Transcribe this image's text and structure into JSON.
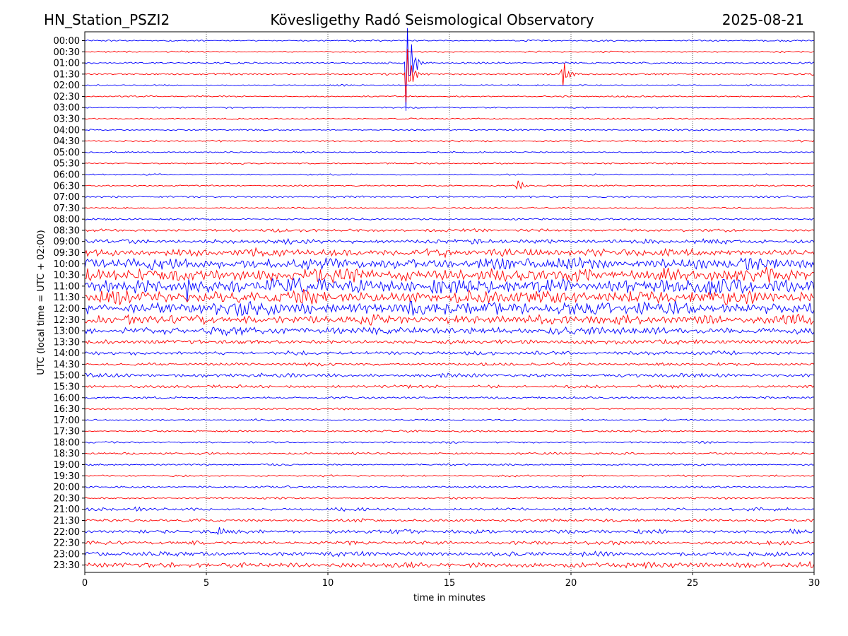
{
  "header": {
    "station": "HN_Station_PSZI2",
    "observatory": "Kövesligethy Radó Seismological Observatory",
    "date": "2025-08-21"
  },
  "colors": {
    "even_rows": "#0000ff",
    "odd_rows": "#ff0000",
    "grid": "#000000"
  },
  "chart_data": {
    "type": "line",
    "plot": "helicorder (seismogram drum)",
    "title": "Kövesligethy Radó Seismological Observatory",
    "xlabel": "time in minutes",
    "ylabel": "UTC (local time = UTC + 02:00)",
    "xlim": [
      0,
      30
    ],
    "x_ticks": [
      0,
      5,
      10,
      15,
      20,
      25,
      30
    ],
    "x_gridlines": [
      5,
      10,
      15,
      20,
      25
    ],
    "grid": "vertical dotted lines at x ticks",
    "row_labels": [
      "00:00",
      "00:30",
      "01:00",
      "01:30",
      "02:00",
      "02:30",
      "03:00",
      "03:30",
      "04:00",
      "04:30",
      "05:00",
      "05:30",
      "06:00",
      "06:30",
      "07:00",
      "07:30",
      "08:00",
      "08:30",
      "09:00",
      "09:30",
      "10:00",
      "10:30",
      "11:00",
      "11:30",
      "12:00",
      "12:30",
      "13:00",
      "13:30",
      "14:00",
      "14:30",
      "15:00",
      "15:30",
      "16:00",
      "16:30",
      "17:00",
      "17:30",
      "18:00",
      "18:30",
      "19:00",
      "19:30",
      "20:00",
      "20:30",
      "21:00",
      "21:30",
      "22:00",
      "22:30",
      "23:00",
      "23:30"
    ],
    "noise_level_relative": [
      0.04,
      0.04,
      0.05,
      0.05,
      0.04,
      0.04,
      0.04,
      0.04,
      0.04,
      0.05,
      0.04,
      0.04,
      0.04,
      0.04,
      0.05,
      0.04,
      0.05,
      0.08,
      0.12,
      0.2,
      0.3,
      0.35,
      0.4,
      0.35,
      0.35,
      0.25,
      0.2,
      0.12,
      0.1,
      0.08,
      0.1,
      0.08,
      0.06,
      0.05,
      0.05,
      0.05,
      0.05,
      0.06,
      0.05,
      0.05,
      0.05,
      0.05,
      0.08,
      0.08,
      0.1,
      0.1,
      0.12,
      0.15
    ],
    "events": [
      {
        "row": "01:00",
        "minute": 13.2,
        "amplitude_rel": 5.5
      },
      {
        "row": "01:30",
        "minute": 13.2,
        "amplitude_rel": 3.5
      },
      {
        "row": "01:30",
        "minute": 19.6,
        "amplitude_rel": 1.8
      },
      {
        "row": "06:30",
        "minute": 17.8,
        "amplitude_rel": 0.8
      },
      {
        "row": "21:00",
        "minute": 2.1,
        "amplitude_rel": 0.35
      },
      {
        "row": "22:00",
        "minute": 5.5,
        "amplitude_rel": 0.45
      },
      {
        "row": "22:00",
        "minute": 29.0,
        "amplitude_rel": 0.35
      },
      {
        "row": "10:30",
        "minute": 23.7,
        "amplitude_rel": 1.0
      },
      {
        "row": "11:00",
        "minute": 4.2,
        "amplitude_rel": 1.3
      },
      {
        "row": "11:00",
        "minute": 8.3,
        "amplitude_rel": 1.0
      },
      {
        "row": "11:00",
        "minute": 14.3,
        "amplitude_rel": 1.0
      },
      {
        "row": "12:00",
        "minute": 19.7,
        "amplitude_rel": 0.9
      },
      {
        "row": "12:30",
        "minute": 1.8,
        "amplitude_rel": 1.0
      }
    ]
  }
}
